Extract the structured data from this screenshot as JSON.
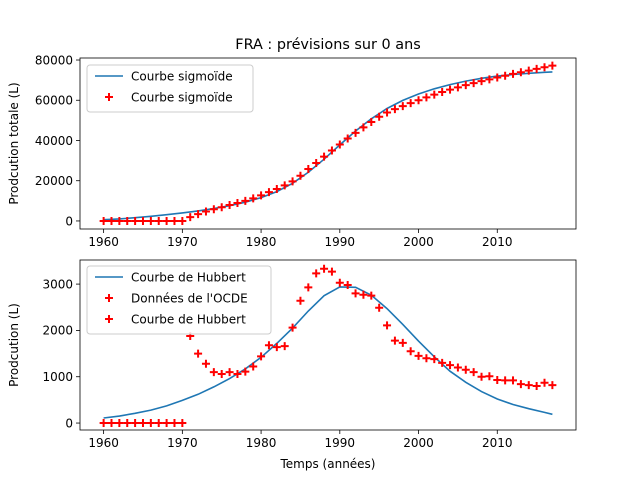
{
  "figure_title": "FRA : prévisions sur 0 ans",
  "colors": {
    "curve": "#1f77b4",
    "markers": "#ff0000"
  },
  "chart_data": [
    {
      "type": "line",
      "xlabel": "",
      "ylabel": "Prodcution totale (L)",
      "xlim": [
        1957,
        2020
      ],
      "ylim": [
        -4000,
        81000
      ],
      "xticks": [
        1960,
        1970,
        1980,
        1990,
        2000,
        2010
      ],
      "xtick_labels": [
        "1960",
        "1970",
        "1980",
        "1990",
        "2000",
        "2010"
      ],
      "yticks": [
        0,
        20000,
        40000,
        60000,
        80000
      ],
      "ytick_labels": [
        "0",
        "20000",
        "40000",
        "60000",
        "80000"
      ],
      "legend": {
        "position": "top-left",
        "entries": [
          "Courbe sigmoïde",
          "Courbe sigmoïde"
        ]
      },
      "series": [
        {
          "name": "Courbe sigmoïde",
          "kind": "line",
          "x": [
            1960,
            1962,
            1964,
            1966,
            1968,
            1970,
            1972,
            1974,
            1976,
            1978,
            1980,
            1982,
            1984,
            1986,
            1988,
            1990,
            1992,
            1994,
            1996,
            1998,
            2000,
            2002,
            2004,
            2006,
            2008,
            2010,
            2012,
            2014,
            2016,
            2017
          ],
          "y": [
            600,
            1000,
            1600,
            2300,
            3100,
            4000,
            5000,
            6200,
            7600,
            9300,
            11600,
            14600,
            18700,
            24200,
            30700,
            37800,
            44700,
            50800,
            55900,
            59900,
            63100,
            65700,
            67800,
            69500,
            70900,
            72000,
            72800,
            73400,
            73900,
            74100
          ]
        },
        {
          "name": "Courbe sigmoïde",
          "kind": "scatter",
          "x": [
            1960,
            1961,
            1962,
            1963,
            1964,
            1965,
            1966,
            1967,
            1968,
            1969,
            1970,
            1971,
            1972,
            1973,
            1974,
            1975,
            1976,
            1977,
            1978,
            1979,
            1980,
            1981,
            1982,
            1983,
            1984,
            1985,
            1986,
            1987,
            1988,
            1989,
            1990,
            1991,
            1992,
            1993,
            1994,
            1995,
            1996,
            1997,
            1998,
            1999,
            2000,
            2001,
            2002,
            2003,
            2004,
            2005,
            2006,
            2007,
            2008,
            2009,
            2010,
            2011,
            2012,
            2013,
            2014,
            2015,
            2016,
            2017
          ],
          "y": [
            0,
            0,
            0,
            0,
            0,
            0,
            0,
            0,
            0,
            0,
            0,
            1900,
            3400,
            4700,
            5800,
            6800,
            7900,
            8900,
            10000,
            11200,
            12700,
            14300,
            15900,
            17700,
            19700,
            22500,
            25800,
            28800,
            32000,
            35000,
            38000,
            41000,
            43800,
            46500,
            49200,
            51800,
            53900,
            55600,
            57100,
            58600,
            60000,
            61400,
            62800,
            64100,
            65300,
            66400,
            67500,
            68500,
            69500,
            70400,
            71300,
            72200,
            73100,
            73900,
            74700,
            75600,
            76400,
            77200
          ]
        }
      ]
    },
    {
      "type": "line",
      "xlabel": "Temps (années)",
      "ylabel": "Prodcution (L)",
      "xlim": [
        1957,
        2020
      ],
      "ylim": [
        -150,
        3520
      ],
      "xticks": [
        1960,
        1970,
        1980,
        1990,
        2000,
        2010
      ],
      "xtick_labels": [
        "1960",
        "1970",
        "1980",
        "1990",
        "2000",
        "2010"
      ],
      "yticks": [
        0,
        1000,
        2000,
        3000
      ],
      "ytick_labels": [
        "0",
        "1000",
        "2000",
        "3000"
      ],
      "legend": {
        "position": "top-left",
        "entries": [
          "Courbe de Hubbert",
          "Données de l'OCDE",
          "Courbe de Hubbert"
        ]
      },
      "series": [
        {
          "name": "Courbe de Hubbert",
          "kind": "line",
          "x": [
            1960,
            1962,
            1964,
            1966,
            1968,
            1970,
            1972,
            1974,
            1976,
            1978,
            1980,
            1982,
            1984,
            1986,
            1988,
            1990,
            1992,
            1994,
            1996,
            1998,
            2000,
            2002,
            2004,
            2006,
            2008,
            2010,
            2012,
            2014,
            2016,
            2017
          ],
          "y": [
            110,
            150,
            210,
            280,
            370,
            490,
            620,
            780,
            960,
            1170,
            1420,
            1720,
            2050,
            2420,
            2750,
            2940,
            2930,
            2760,
            2470,
            2130,
            1770,
            1430,
            1120,
            880,
            680,
            520,
            400,
            310,
            230,
            190
          ]
        },
        {
          "name": "Données de l'OCDE",
          "kind": "scatter",
          "x": [
            1960,
            1961,
            1962,
            1963,
            1964,
            1965,
            1966,
            1967,
            1968,
            1969,
            1970
          ],
          "y": [
            0,
            0,
            0,
            0,
            0,
            0,
            0,
            0,
            0,
            0,
            0
          ]
        },
        {
          "name": "Courbe de Hubbert",
          "kind": "scatter",
          "x": [
            1971,
            1972,
            1973,
            1974,
            1975,
            1976,
            1977,
            1978,
            1979,
            1980,
            1981,
            1982,
            1983,
            1984,
            1985,
            1986,
            1987,
            1988,
            1989,
            1990,
            1991,
            1992,
            1993,
            1994,
            1995,
            1996,
            1997,
            1998,
            1999,
            2000,
            2001,
            2002,
            2003,
            2004,
            2005,
            2006,
            2007,
            2008,
            2009,
            2010,
            2011,
            2012,
            2013,
            2014,
            2015,
            2016,
            2017
          ],
          "y": [
            1880,
            1500,
            1280,
            1100,
            1060,
            1100,
            1060,
            1110,
            1220,
            1440,
            1680,
            1640,
            1660,
            2060,
            2640,
            2930,
            3230,
            3330,
            3270,
            3030,
            2980,
            2800,
            2770,
            2750,
            2490,
            2110,
            1780,
            1730,
            1550,
            1450,
            1400,
            1380,
            1300,
            1250,
            1200,
            1150,
            1100,
            1000,
            1010,
            930,
            920,
            920,
            840,
            820,
            800,
            870,
            820
          ]
        }
      ]
    }
  ]
}
